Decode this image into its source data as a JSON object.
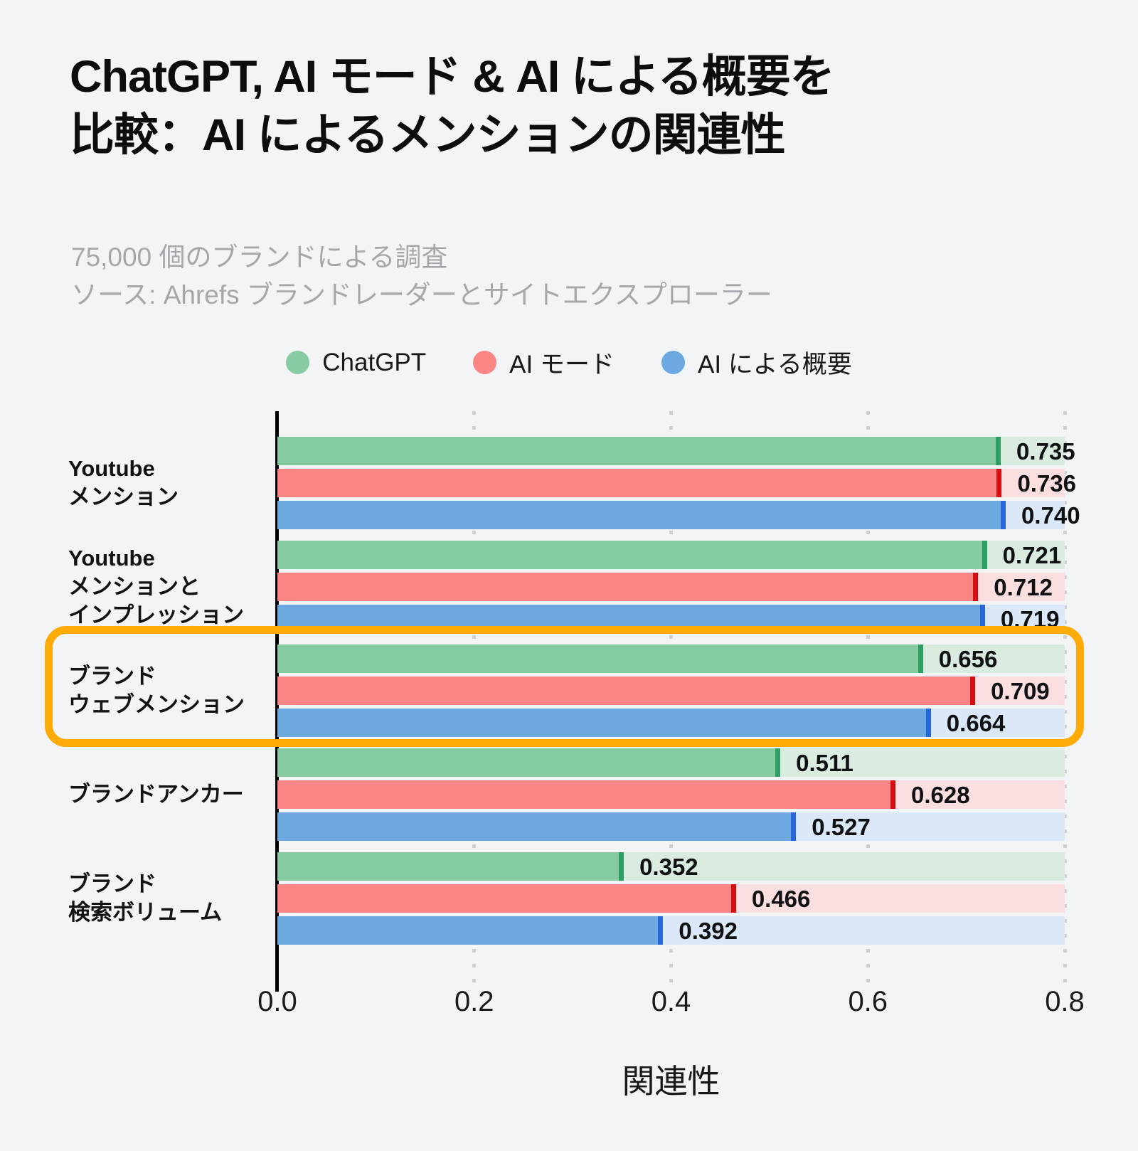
{
  "page": {
    "background": "#f3f4f6",
    "title_line1": "ChatGPT, AI モード & AI による概要を",
    "title_line2": "比較：AI によるメンションの関連性",
    "subtitle_line1": "75,000 個のブランドによる調査",
    "subtitle_line2": "ソース: Ahrefs ブランドレーダーとサイトエクスプローラー"
  },
  "legend": {
    "items": [
      {
        "label": "ChatGPT",
        "color": "#87cba3"
      },
      {
        "label": "AI モード",
        "color": "#fb8585"
      },
      {
        "label": "AI による概要",
        "color": "#6ca9e1"
      }
    ]
  },
  "colors": {
    "green_fill": "#87cba3",
    "green_cap": "#2f9e63",
    "green_track": "#d9ecdf",
    "red_fill": "#fb8585",
    "red_cap": "#d40e0e",
    "red_track": "#fbdee0",
    "blue_fill": "#6ca9e1",
    "blue_cap": "#2767d9",
    "blue_track": "#dbe8f8",
    "highlight": "#ffab07",
    "axis": "#000000",
    "gridline": "#cdd0d3"
  },
  "chart_data": {
    "type": "bar",
    "orientation": "horizontal",
    "title": "ChatGPT, AI モード & AI による概要を比較：AI によるメンションの関連性",
    "subtitle": "75,000 個のブランドによる調査 / ソース: Ahrefs ブランドレーダーとサイトエクスプローラー",
    "xlabel": "関連性",
    "xlim": [
      0,
      0.8
    ],
    "x_tick_labels": [
      "0.0",
      "0.2",
      "0.4",
      "0.6",
      "0.8"
    ],
    "x_ticks": [
      0,
      0.2,
      0.4,
      0.6,
      0.8
    ],
    "grid": "dotted-vertical",
    "legend_position": "top-center",
    "categories": [
      [
        "Youtube",
        "メンション"
      ],
      [
        "Youtube",
        "メンションと",
        "インプレッション"
      ],
      [
        "ブランド",
        "ウェブメンション"
      ],
      [
        "ブランドアンカー"
      ],
      [
        "ブランド",
        "検索ボリューム"
      ]
    ],
    "highlighted_category_index": 2,
    "series": [
      {
        "name": "ChatGPT",
        "fill": "#87cba3",
        "cap": "#2f9e63",
        "track": "#d9ecdf",
        "values": [
          0.735,
          0.721,
          0.656,
          0.511,
          0.352
        ]
      },
      {
        "name": "AI モード",
        "fill": "#fb8585",
        "cap": "#d40e0e",
        "track": "#fbdee0",
        "values": [
          0.736,
          0.712,
          0.709,
          0.628,
          0.466
        ]
      },
      {
        "name": "AI による概要",
        "fill": "#6ca9e1",
        "cap": "#2767d9",
        "track": "#dbe8f8",
        "values": [
          0.74,
          0.719,
          0.664,
          0.527,
          0.392
        ]
      }
    ]
  }
}
